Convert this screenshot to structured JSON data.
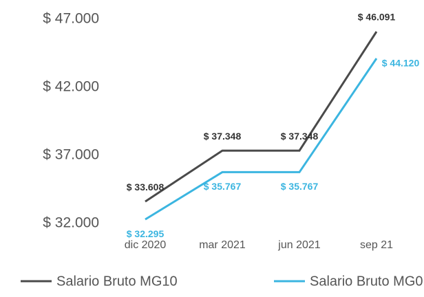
{
  "chart_data": {
    "type": "line",
    "categories": [
      "dic 2020",
      "mar 2021",
      "jun 2021",
      "sep 21"
    ],
    "series": [
      {
        "name": "Salario Bruto MG10",
        "color": "#4a4a4a",
        "values": [
          33608,
          37348,
          37348,
          46091
        ],
        "value_labels": [
          "$ 33.608",
          "$ 37.348",
          "$ 37.348",
          "$ 46.091"
        ]
      },
      {
        "name": "Salario Bruto MG0",
        "color": "#3bb5e0",
        "values": [
          32295,
          35767,
          35767,
          44120
        ],
        "value_labels": [
          "$ 32.295",
          "$ 35.767",
          "$ 35.767",
          "$ 44.120"
        ]
      }
    ],
    "ylim": [
      32000,
      47000
    ],
    "yticks": [
      {
        "value": 32000,
        "label": "$ 32.000"
      },
      {
        "value": 37000,
        "label": "$ 37.000"
      },
      {
        "value": 42000,
        "label": "$ 42.000"
      },
      {
        "value": 47000,
        "label": "$ 47.000"
      }
    ],
    "legend": "bottom"
  }
}
